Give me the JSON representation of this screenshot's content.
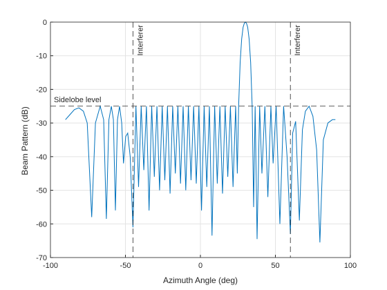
{
  "chart_data": {
    "type": "line",
    "xlabel": "Azimuth Angle (deg)",
    "ylabel": "Beam Pattern (dB)",
    "xlim": [
      -100,
      100
    ],
    "ylim": [
      -70,
      0
    ],
    "xticks": [
      -100,
      -50,
      0,
      50,
      100
    ],
    "yticks": [
      -70,
      -60,
      -50,
      -40,
      -30,
      -20,
      -10,
      0
    ],
    "grid": true,
    "x": [
      -90,
      -87,
      -84,
      -81,
      -78,
      -75.5,
      -72.5,
      -70,
      -66.8,
      -64.5,
      -62.7,
      -61,
      -59.4,
      -58,
      -56.7,
      -55.3,
      -53.9,
      -52.5,
      -51.3,
      -49.8,
      -48.5,
      -46.8,
      -45,
      -43,
      -41.25,
      -39.5,
      -37.75,
      -36,
      -34.25,
      -32.5,
      -30.75,
      -29,
      -27.25,
      -25.5,
      -23.75,
      -22,
      -20.25,
      -18.5,
      -16.75,
      -15,
      -13.25,
      -11.5,
      -9.75,
      -8,
      -6.25,
      -4.5,
      -2.75,
      -1,
      0.75,
      2.5,
      4.25,
      6,
      7.75,
      9.5,
      11.25,
      13,
      14.75,
      16.5,
      18.25,
      20,
      21.75,
      23.5,
      24.6,
      25.5,
      26.5,
      27.5,
      28.5,
      29.3,
      30,
      30.7,
      31.5,
      32.5,
      33.5,
      34.5,
      35.5,
      36.5,
      37.8,
      39.5,
      41,
      43,
      45,
      47,
      48.5,
      50.5,
      53,
      55.5,
      57.8,
      60,
      61.5,
      63.5,
      66,
      68,
      70,
      72.5,
      75,
      77.5,
      79.7,
      82,
      85,
      88,
      90
    ],
    "series": [
      {
        "color": "#0072bd",
        "values": [
          -29,
          -27.5,
          -26,
          -25.5,
          -26.5,
          -30,
          -58,
          -30,
          -25,
          -29,
          -58.5,
          -29,
          -25,
          -29,
          -56,
          -29,
          -25,
          -30,
          -42,
          -34,
          -33,
          -40,
          -61,
          -25,
          -49,
          -25,
          -44,
          -25,
          -56,
          -25,
          -46,
          -25,
          -50,
          -25,
          -47,
          -25,
          -51,
          -25,
          -45,
          -25,
          -48,
          -25,
          -50,
          -25,
          -47,
          -25,
          -48,
          -25,
          -56,
          -25,
          -49,
          -25,
          -63.5,
          -25,
          -48,
          -25,
          -51,
          -25,
          -46,
          -25,
          -49,
          -25,
          -45,
          -25,
          -12,
          -5,
          -1.5,
          -0.3,
          0,
          -0.3,
          -1.5,
          -5,
          -12,
          -25,
          -55,
          -25,
          -64.5,
          -25,
          -45,
          -25,
          -52,
          -25,
          -42,
          -25,
          -60,
          -25,
          -40,
          -63,
          -33,
          -29.5,
          -59,
          -32,
          -26.5,
          -25,
          -28,
          -38,
          -65.5,
          -35,
          -30,
          -29,
          -29
        ]
      }
    ],
    "annotations": [
      {
        "text": "Sidelobe level",
        "y": -25
      },
      {
        "text": "Interferer",
        "x": -45
      },
      {
        "text": "Interferer",
        "x": 60
      }
    ]
  }
}
